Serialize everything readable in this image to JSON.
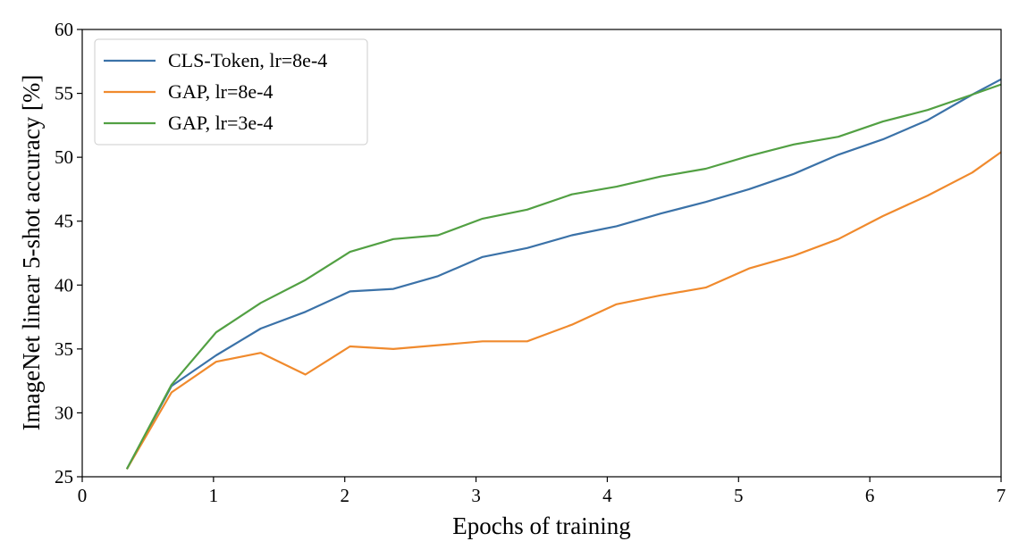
{
  "chart_data": {
    "type": "line",
    "xlabel": "Epochs of training",
    "ylabel": "ImageNet linear 5-shot accuracy [%]",
    "xlim": [
      0,
      7
    ],
    "ylim": [
      25,
      60
    ],
    "xticks": [
      "0",
      "1",
      "2",
      "3",
      "4",
      "5",
      "6",
      "7"
    ],
    "yticks": [
      "25",
      "30",
      "35",
      "40",
      "45",
      "50",
      "55",
      "60"
    ],
    "grid": false,
    "legend_position": "top-left",
    "series": [
      {
        "name": "CLS-Token, lr=8e-4",
        "color": "#3b72a8",
        "x": [
          0.34,
          0.68,
          1.02,
          1.36,
          1.7,
          2.04,
          2.37,
          2.71,
          3.05,
          3.39,
          3.73,
          4.07,
          4.41,
          4.75,
          5.08,
          5.42,
          5.76,
          6.1,
          6.44,
          6.78,
          7.0
        ],
        "y": [
          25.6,
          32.1,
          34.5,
          36.6,
          37.9,
          39.5,
          39.7,
          40.7,
          42.2,
          42.9,
          43.9,
          44.6,
          45.6,
          46.5,
          47.5,
          48.7,
          50.2,
          51.4,
          52.9,
          54.9,
          56.1
        ]
      },
      {
        "name": "GAP, lr=8e-4",
        "color": "#f08a2d",
        "x": [
          0.34,
          0.68,
          1.02,
          1.36,
          1.7,
          2.04,
          2.37,
          2.71,
          3.05,
          3.39,
          3.73,
          4.07,
          4.41,
          4.75,
          5.08,
          5.42,
          5.76,
          6.1,
          6.44,
          6.78,
          7.0
        ],
        "y": [
          25.6,
          31.6,
          34.0,
          34.7,
          33.0,
          35.2,
          35.0,
          35.3,
          35.6,
          35.6,
          36.9,
          38.5,
          39.2,
          39.8,
          41.3,
          42.3,
          43.6,
          45.4,
          47.0,
          48.8,
          50.4
        ]
      },
      {
        "name": "GAP, lr=3e-4",
        "color": "#52a043",
        "x": [
          0.34,
          0.68,
          1.02,
          1.36,
          1.7,
          2.04,
          2.37,
          2.71,
          3.05,
          3.39,
          3.73,
          4.07,
          4.41,
          4.75,
          5.08,
          5.42,
          5.76,
          6.1,
          6.44,
          6.78,
          7.0
        ],
        "y": [
          25.6,
          32.2,
          36.3,
          38.6,
          40.4,
          42.6,
          43.6,
          43.9,
          45.2,
          45.9,
          47.1,
          47.7,
          48.5,
          49.1,
          50.1,
          51.0,
          51.6,
          52.8,
          53.7,
          54.9,
          55.7
        ]
      }
    ]
  }
}
